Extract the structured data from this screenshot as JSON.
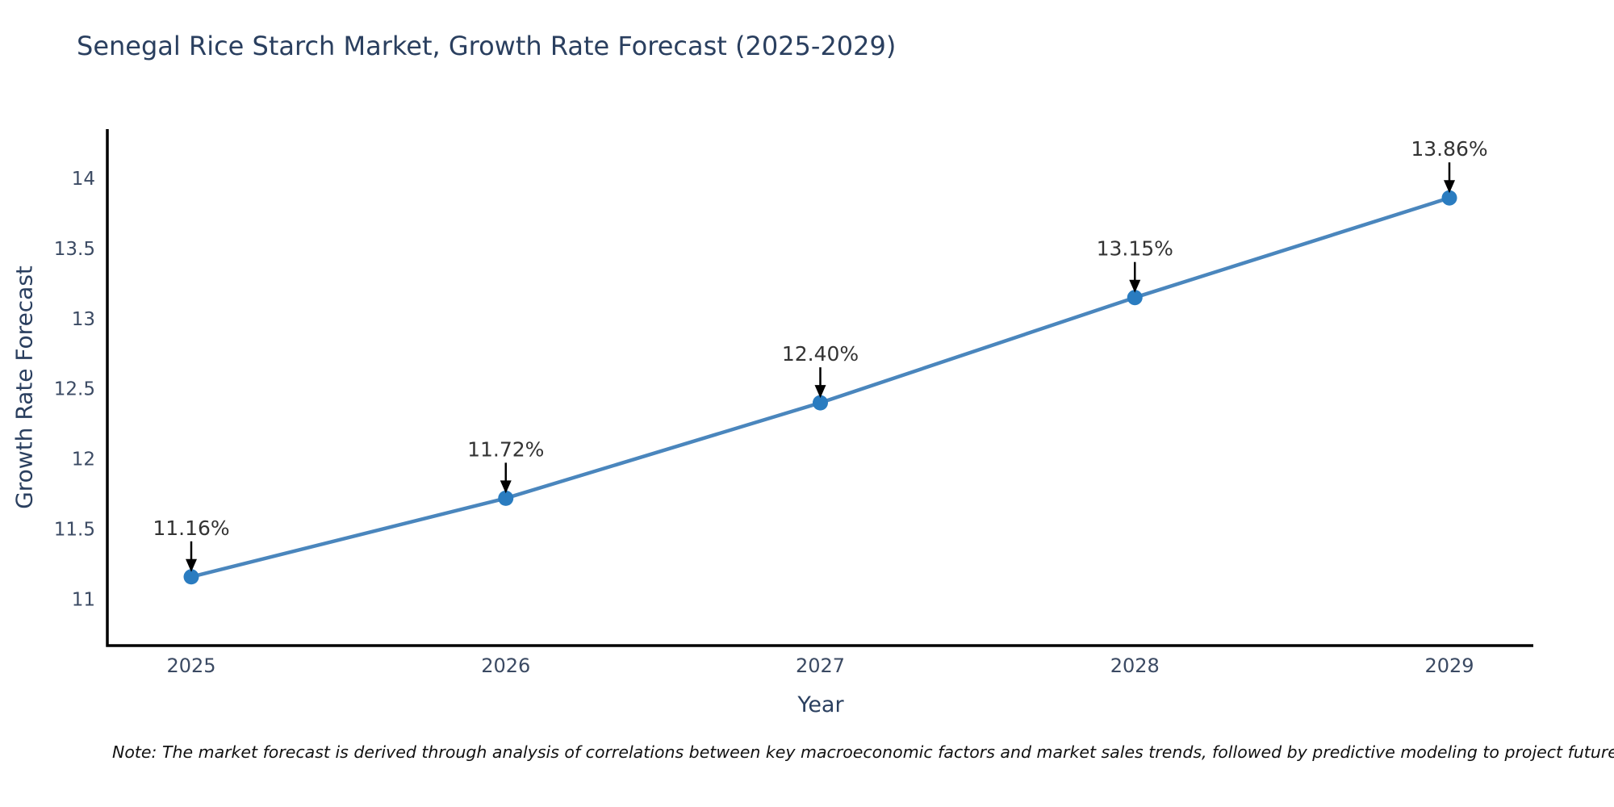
{
  "title": "Senegal Rice Starch Market, Growth Rate Forecast (2025-2029)",
  "note": "Note: The market forecast is derived through analysis of correlations between key macroeconomic factors and market sales trends, followed by predictive modeling to project future sales.",
  "chart_data": {
    "type": "line",
    "title": "Senegal Rice Starch Market, Growth Rate Forecast (2025-2029)",
    "x": [
      "2025",
      "2026",
      "2027",
      "2028",
      "2029"
    ],
    "values": [
      11.16,
      11.72,
      12.4,
      13.15,
      13.86
    ],
    "point_labels": [
      "11.16%",
      "11.72%",
      "12.40%",
      "13.15%",
      "13.86%"
    ],
    "xlabel": "Year",
    "ylabel": "Growth Rate Forecast",
    "yticks": [
      11,
      11.5,
      12,
      12.5,
      13,
      13.5,
      14
    ],
    "ytick_labels": [
      "11",
      "11.5",
      "12",
      "12.5",
      "13",
      "13.5",
      "14"
    ],
    "ylim": [
      10.67,
      14.35
    ],
    "grid": false,
    "legend": false,
    "colors": {
      "line": "#4a86bd",
      "marker": "#2a7cc0",
      "axis": "#000000",
      "title": "#2a3f5f",
      "tick": "#3b4a63",
      "annotation": "#333333",
      "arrow": "#000000"
    }
  }
}
